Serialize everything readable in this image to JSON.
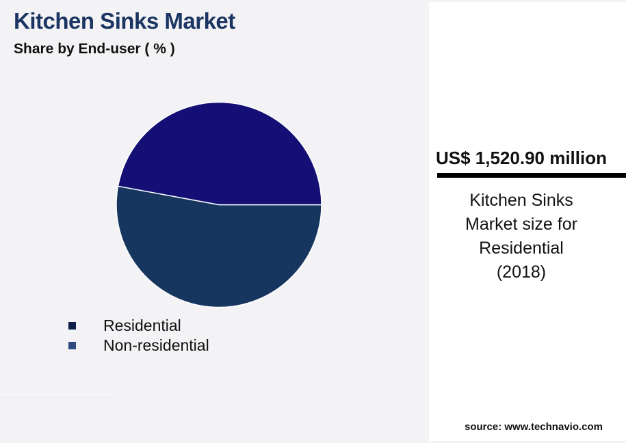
{
  "header": {
    "title": "Kitchen Sinks Market",
    "subtitle": "Share by End-user ( % )"
  },
  "chart_data": {
    "type": "pie",
    "title": "Kitchen Sinks Market",
    "subtitle": "Share by End-user ( % )",
    "categories": [
      "Residential",
      "Non-residential"
    ],
    "values": [
      52.9,
      47.1
    ],
    "colors": [
      "#163660",
      "#140f74"
    ],
    "legend_colors": [
      "#0f1f4a",
      "#2f4a80"
    ],
    "legend_placement": "bottom-left"
  },
  "panel": {
    "value": "US$ 1,520.90 million",
    "caption_lines": [
      "Kitchen Sinks",
      "Market size for",
      "Residential",
      "(2018)"
    ],
    "source": "source: www.technavio.com"
  }
}
